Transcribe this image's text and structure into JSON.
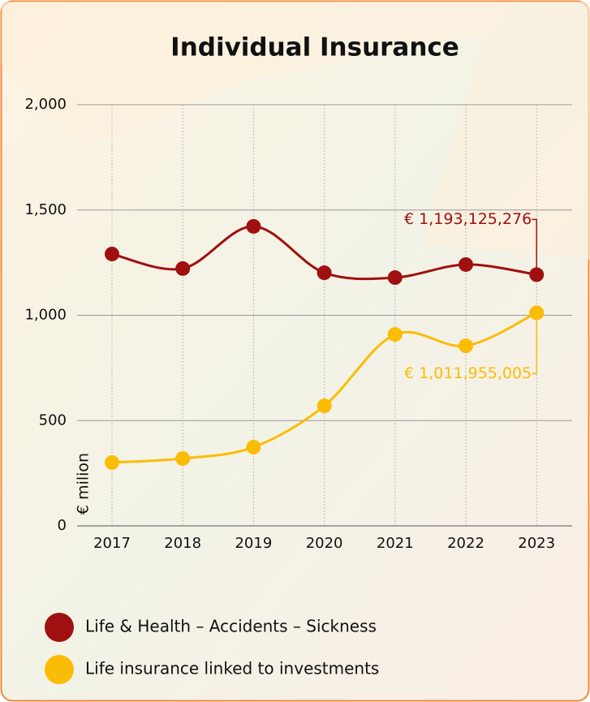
{
  "chart_data": {
    "type": "line",
    "title": "Individual Insurance",
    "y_label": "€ milion",
    "categories": [
      "2017",
      "2018",
      "2019",
      "2020",
      "2021",
      "2022",
      "2023"
    ],
    "series": [
      {
        "name": "Life & Health – Accidents – Sickness",
        "color": "#a01010",
        "values": [
          1291,
          1222,
          1422,
          1202,
          1179,
          1241,
          1193.125276
        ],
        "value_labels": [
          null,
          null,
          null,
          null,
          null,
          null,
          "€ 1,193,125,276"
        ]
      },
      {
        "name": "Life insurance linked to investments",
        "color": "#fbbc05",
        "values": [
          301,
          320,
          374,
          570,
          909,
          855,
          1011.955005
        ],
        "value_labels": [
          null,
          null,
          null,
          null,
          null,
          null,
          "€ 1,011,955,005"
        ]
      }
    ],
    "ylim": [
      0,
      2000
    ],
    "yticks": [
      0,
      500,
      {
        "value": 1000,
        "label": "1,000"
      },
      {
        "value": 1500,
        "label": "1,500"
      },
      {
        "value": 2000,
        "label": "2,000"
      }
    ],
    "grid": true
  }
}
